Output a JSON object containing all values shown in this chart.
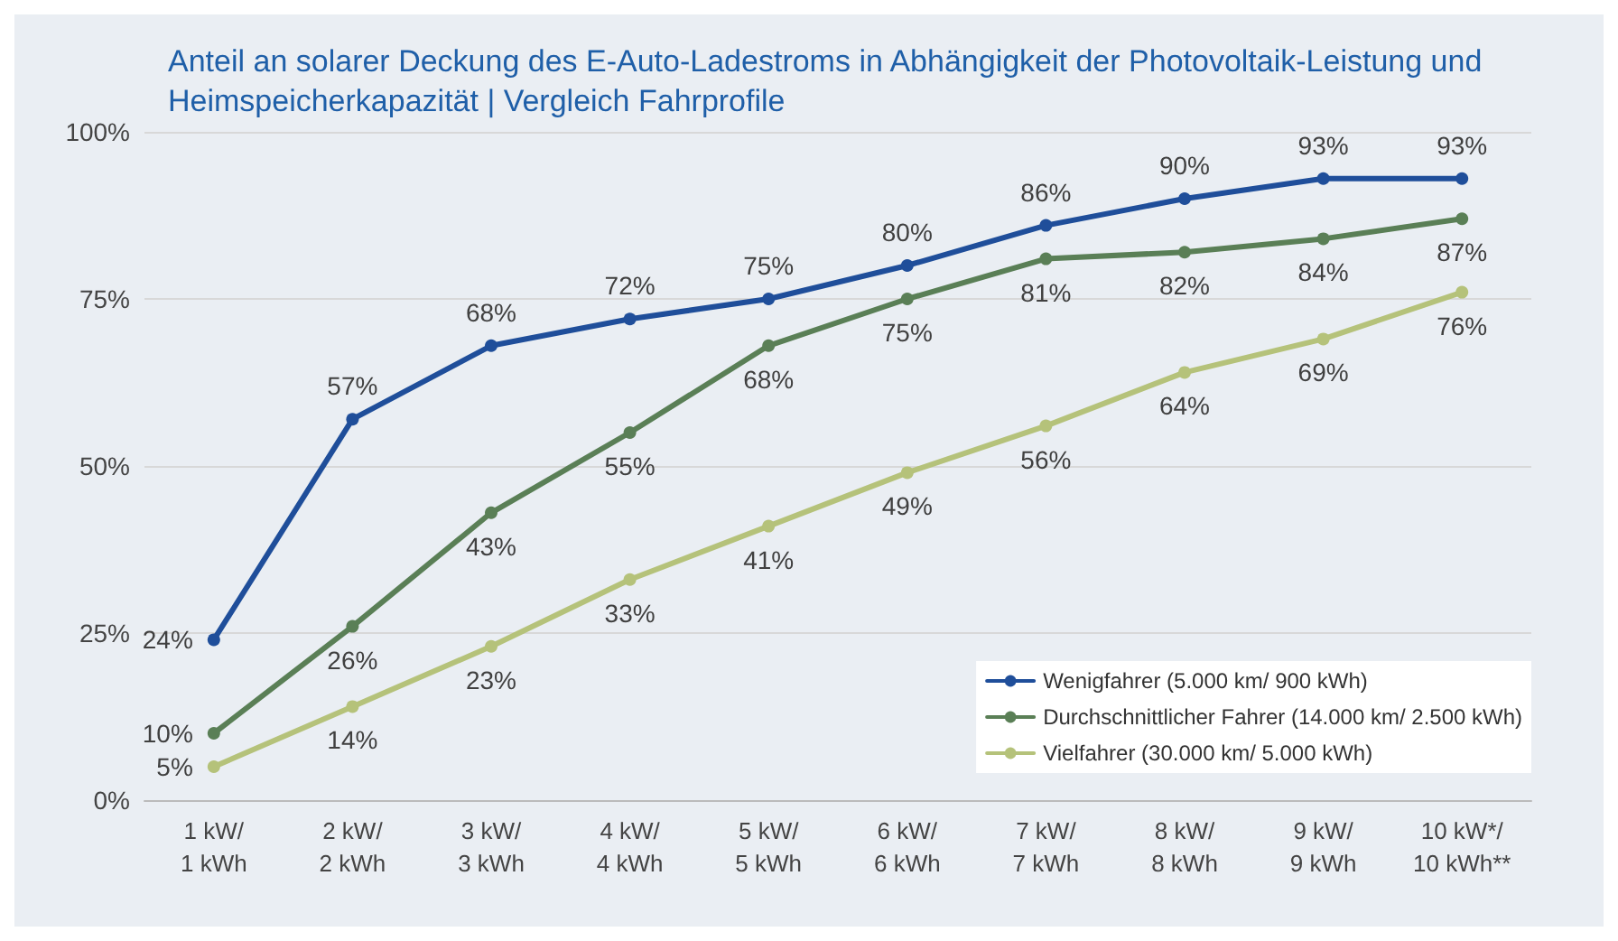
{
  "chart_data": {
    "type": "line",
    "title": "Anteil an solarer Deckung des E-Auto-Ladestroms in Abhängigkeit der Photovoltaik-Leistung und Heimspeicherkapazität | Vergleich Fahrprofile",
    "categories": [
      "1 kW/\n1 kWh",
      "2 kW/\n2 kWh",
      "3 kW/\n3 kWh",
      "4 kW/\n4 kWh",
      "5 kW/\n5 kWh",
      "6 kW/\n6 kWh",
      "7 kW/\n7 kWh",
      "8 kW/\n8 kWh",
      "9 kW/\n9 kWh",
      "10 kW*/\n10 kWh**"
    ],
    "series": [
      {
        "name": "Wenigfahrer (5.000 km/ 900 kWh)",
        "color": "#1f4e9a",
        "values": [
          24,
          57,
          68,
          72,
          75,
          80,
          86,
          90,
          93,
          93
        ],
        "value_labels": [
          "24%",
          "57%",
          "68%",
          "72%",
          "75%",
          "80%",
          "86%",
          "90%",
          "93%",
          "93%"
        ]
      },
      {
        "name": "Durchschnittlicher Fahrer (14.000 km/ 2.500 kWh)",
        "color": "#5a7f56",
        "values": [
          10,
          26,
          43,
          55,
          68,
          75,
          81,
          82,
          84,
          87
        ],
        "value_labels": [
          "10%",
          "26%",
          "43%",
          "55%",
          "68%",
          "75%",
          "81%",
          "82%",
          "84%",
          "87%"
        ]
      },
      {
        "name": "Vielfahrer (30.000 km/ 5.000 kWh)",
        "color": "#b5c27a",
        "values": [
          5,
          14,
          23,
          33,
          41,
          49,
          56,
          64,
          69,
          76
        ],
        "value_labels": [
          "5%",
          "14%",
          "23%",
          "33%",
          "41%",
          "49%",
          "56%",
          "64%",
          "69%",
          "76%"
        ]
      }
    ],
    "ylim": [
      0,
      100
    ],
    "yticks": [
      {
        "value": 0,
        "label": "0%"
      },
      {
        "value": 25,
        "label": "25%"
      },
      {
        "value": 50,
        "label": "50%"
      },
      {
        "value": 75,
        "label": "75%"
      },
      {
        "value": 100,
        "label": "100%"
      }
    ],
    "grid": "y",
    "legend": "bottom right",
    "marker": "circle",
    "line_style": "solid"
  }
}
